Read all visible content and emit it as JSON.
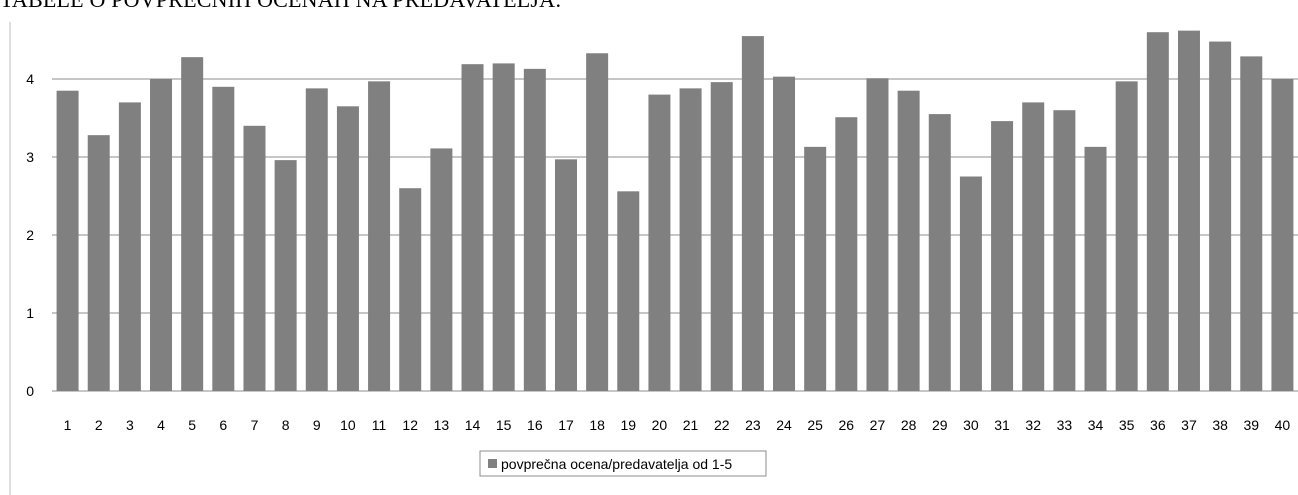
{
  "header_text": "TABELE O POVPREČNIH OCENAH NA PREDAVATELJA:",
  "chart_data": {
    "type": "bar",
    "title": "",
    "xlabel": "",
    "ylabel": "",
    "ylim": [
      0,
      4.75
    ],
    "yticks": [
      0,
      1,
      2,
      3,
      4
    ],
    "grid": true,
    "legend_position": "bottom",
    "bar_color": "#808080",
    "categories": [
      "1",
      "2",
      "3",
      "4",
      "5",
      "6",
      "7",
      "8",
      "9",
      "10",
      "11",
      "12",
      "13",
      "14",
      "15",
      "16",
      "17",
      "18",
      "19",
      "20",
      "21",
      "22",
      "23",
      "24",
      "25",
      "26",
      "27",
      "28",
      "29",
      "30",
      "31",
      "32",
      "33",
      "34",
      "35",
      "36",
      "37",
      "38",
      "39",
      "40"
    ],
    "series": [
      {
        "name": "povprečna ocena/predavatelja od 1-5",
        "values": [
          3.85,
          3.28,
          3.7,
          4.0,
          4.28,
          3.9,
          3.4,
          2.96,
          3.88,
          3.65,
          3.97,
          2.6,
          3.11,
          4.19,
          4.2,
          4.13,
          2.97,
          4.33,
          2.56,
          3.8,
          3.88,
          3.96,
          4.55,
          4.03,
          3.13,
          3.51,
          4.01,
          3.85,
          3.55,
          2.75,
          3.46,
          3.7,
          3.6,
          3.13,
          3.97,
          4.6,
          4.62,
          4.48,
          4.29,
          4.0
        ]
      }
    ]
  }
}
